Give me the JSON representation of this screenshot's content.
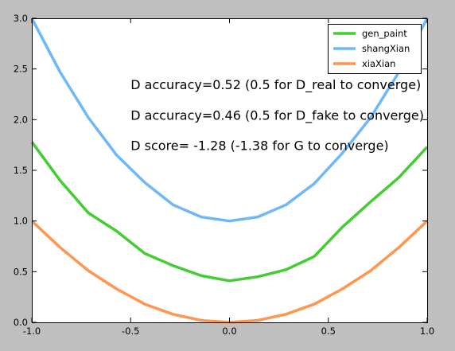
{
  "chart_data": {
    "type": "line",
    "title": "",
    "xlabel": "",
    "ylabel": "",
    "xlim": [
      -1.0,
      1.0
    ],
    "ylim": [
      0.0,
      3.0
    ],
    "grid": false,
    "legend_position": "top-right",
    "x_ticks": [
      "-1.0",
      "-0.5",
      "0.0",
      "0.5",
      "1.0"
    ],
    "y_ticks": [
      "0.0",
      "0.5",
      "1.0",
      "1.5",
      "2.0",
      "2.5",
      "3.0"
    ],
    "x": [
      -1.0,
      -0.857,
      -0.714,
      -0.571,
      -0.429,
      -0.286,
      -0.143,
      0.0,
      0.143,
      0.286,
      0.429,
      0.571,
      0.714,
      0.857,
      1.0
    ],
    "series": [
      {
        "name": "gen_paint",
        "color": "#44cc33",
        "values": [
          1.78,
          1.4,
          1.08,
          0.9,
          0.68,
          0.56,
          0.46,
          0.41,
          0.45,
          0.52,
          0.65,
          0.94,
          1.19,
          1.43,
          1.73
        ]
      },
      {
        "name": "shangXian",
        "color": "#6fb8f7",
        "values": [
          3.0,
          2.47,
          2.02,
          1.65,
          1.38,
          1.16,
          1.04,
          1.0,
          1.04,
          1.16,
          1.37,
          1.67,
          2.02,
          2.47,
          3.0
        ]
      },
      {
        "name": "xiaXian",
        "color": "#ff9650",
        "values": [
          1.0,
          0.74,
          0.51,
          0.33,
          0.18,
          0.08,
          0.02,
          0.0,
          0.02,
          0.08,
          0.18,
          0.33,
          0.51,
          0.74,
          1.0
        ]
      }
    ],
    "annotations": [
      {
        "text": "D accuracy=0.52 (0.5 for D_real to converge)",
        "x": -0.5,
        "y": 2.3
      },
      {
        "text": "D accuracy=0.46 (0.5 for D_fake to converge)",
        "x": -0.5,
        "y": 2.0
      },
      {
        "text": "D score= -1.28 (-1.38 for G to converge)",
        "x": -0.5,
        "y": 1.7
      }
    ]
  }
}
